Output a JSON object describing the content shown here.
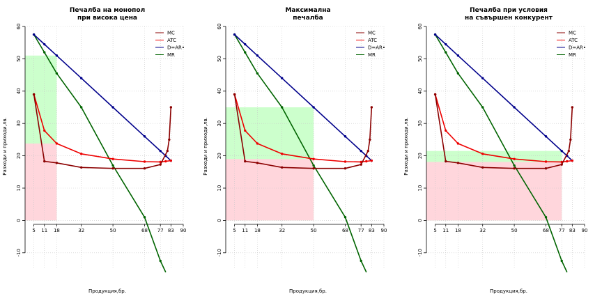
{
  "chart_data": [
    {
      "type": "line",
      "title_lines": [
        "Печалба на монопол",
        "при висока цена"
      ],
      "xlabel": "Продукция,бр.",
      "ylabel": "Разходи и приходи,лв.",
      "xlim": [
        0,
        90
      ],
      "ylim": [
        -15,
        60
      ],
      "x_ticks": [
        5,
        11,
        18,
        32,
        50,
        68,
        77,
        83,
        90
      ],
      "y_ticks": [
        -10,
        0,
        10,
        20,
        30,
        40,
        50,
        60
      ],
      "grid": true,
      "legend_position": "top-right",
      "series": [
        {
          "name": "MC",
          "color": "#8b0000",
          "x": [
            5,
            11,
            18,
            32,
            50,
            68,
            77,
            81,
            82,
            83
          ],
          "y": [
            39,
            18.3,
            17.8,
            16.4,
            16.1,
            16.1,
            17.3,
            21.5,
            25,
            35
          ]
        },
        {
          "name": "ATC",
          "color": "#ee0000",
          "x": [
            5,
            11,
            18,
            32,
            50,
            68,
            77,
            80,
            83
          ],
          "y": [
            39,
            27.8,
            23.8,
            20.6,
            19.0,
            18.2,
            18.1,
            18.3,
            18.5
          ]
        },
        {
          "name": "D=AR•",
          "color": "#00008b",
          "x": [
            5,
            11,
            18,
            32,
            50,
            68,
            77,
            80,
            83
          ],
          "y": [
            57.5,
            54.5,
            51,
            44,
            35,
            26,
            21.5,
            20,
            18.5
          ]
        },
        {
          "name": "MR",
          "color": "#006400",
          "x": [
            5,
            11,
            18,
            32,
            50,
            68,
            77,
            80
          ],
          "y": [
            57.5,
            52,
            45.5,
            35,
            17,
            1,
            -12.5,
            -16
          ]
        }
      ],
      "shaded_regions": [
        {
          "label": "revenue",
          "color": "#ccffcc",
          "x": [
            0,
            18
          ],
          "y": [
            0,
            51
          ]
        },
        {
          "label": "cost",
          "color": "#ffd6dc",
          "x": [
            0,
            18
          ],
          "y": [
            0,
            23.8
          ]
        }
      ]
    },
    {
      "type": "line",
      "title_lines": [
        "Максимална",
        "печалба"
      ],
      "xlabel": "Продукция,бр.",
      "ylabel": "Разходи и приходи,лв.",
      "xlim": [
        0,
        90
      ],
      "ylim": [
        -15,
        60
      ],
      "x_ticks": [
        5,
        11,
        18,
        32,
        50,
        68,
        77,
        83,
        90
      ],
      "y_ticks": [
        -10,
        0,
        10,
        20,
        30,
        40,
        50,
        60
      ],
      "grid": true,
      "legend_position": "top-right",
      "series": [
        {
          "name": "MC",
          "color": "#8b0000",
          "x": [
            5,
            11,
            18,
            32,
            50,
            68,
            77,
            81,
            82,
            83
          ],
          "y": [
            39,
            18.3,
            17.8,
            16.4,
            16.1,
            16.1,
            17.3,
            21.5,
            25,
            35
          ]
        },
        {
          "name": "ATC",
          "color": "#ee0000",
          "x": [
            5,
            11,
            18,
            32,
            50,
            68,
            77,
            80,
            83
          ],
          "y": [
            39,
            27.8,
            23.8,
            20.6,
            19.0,
            18.2,
            18.1,
            18.3,
            18.5
          ]
        },
        {
          "name": "D=AR•",
          "color": "#00008b",
          "x": [
            5,
            11,
            18,
            32,
            50,
            68,
            77,
            80,
            83
          ],
          "y": [
            57.5,
            54.5,
            51,
            44,
            35,
            26,
            21.5,
            20,
            18.5
          ]
        },
        {
          "name": "MR",
          "color": "#006400",
          "x": [
            5,
            11,
            18,
            32,
            50,
            68,
            77,
            80
          ],
          "y": [
            57.5,
            52,
            45.5,
            35,
            17,
            1,
            -12.5,
            -16
          ]
        }
      ],
      "shaded_regions": [
        {
          "label": "revenue",
          "color": "#ccffcc",
          "x": [
            0,
            50
          ],
          "y": [
            0,
            35
          ]
        },
        {
          "label": "cost",
          "color": "#ffd6dc",
          "x": [
            0,
            50
          ],
          "y": [
            0,
            19
          ]
        }
      ]
    },
    {
      "type": "line",
      "title_lines": [
        "Печалба при условия",
        "на съвършен конкурент"
      ],
      "xlabel": "Продукция,бр.",
      "ylabel": "Разходи и приходи,лв.",
      "xlim": [
        0,
        90
      ],
      "ylim": [
        -15,
        60
      ],
      "x_ticks": [
        5,
        11,
        18,
        32,
        50,
        68,
        77,
        83,
        90
      ],
      "y_ticks": [
        -10,
        0,
        10,
        20,
        30,
        40,
        50,
        60
      ],
      "grid": true,
      "legend_position": "top-right",
      "series": [
        {
          "name": "MC",
          "color": "#8b0000",
          "x": [
            5,
            11,
            18,
            32,
            50,
            68,
            77,
            81,
            82,
            83
          ],
          "y": [
            39,
            18.3,
            17.8,
            16.4,
            16.1,
            16.1,
            17.3,
            21.5,
            25,
            35
          ]
        },
        {
          "name": "ATC",
          "color": "#ee0000",
          "x": [
            5,
            11,
            18,
            32,
            50,
            68,
            77,
            80,
            83
          ],
          "y": [
            39,
            27.8,
            23.8,
            20.6,
            19.0,
            18.2,
            18.1,
            18.3,
            18.5
          ]
        },
        {
          "name": "D=AR•",
          "color": "#00008b",
          "x": [
            5,
            11,
            18,
            32,
            50,
            68,
            77,
            80,
            83
          ],
          "y": [
            57.5,
            54.5,
            51,
            44,
            35,
            26,
            21.5,
            20,
            18.5
          ]
        },
        {
          "name": "MR",
          "color": "#006400",
          "x": [
            5,
            11,
            18,
            32,
            50,
            68,
            77,
            80
          ],
          "y": [
            57.5,
            52,
            45.5,
            35,
            17,
            1,
            -12.5,
            -16
          ]
        }
      ],
      "shaded_regions": [
        {
          "label": "revenue",
          "color": "#ccffcc",
          "x": [
            0,
            77
          ],
          "y": [
            0,
            21.5
          ]
        },
        {
          "label": "cost",
          "color": "#ffd6dc",
          "x": [
            0,
            77
          ],
          "y": [
            0,
            18.1
          ]
        }
      ]
    }
  ]
}
